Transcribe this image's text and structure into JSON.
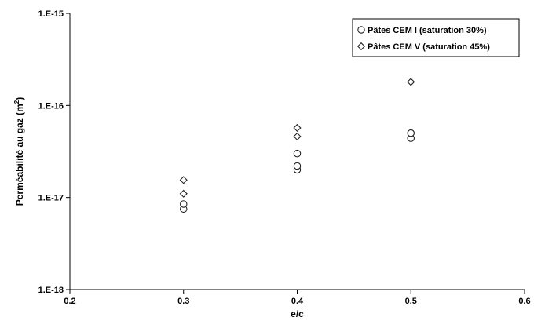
{
  "chart_data": {
    "type": "scatter",
    "xlabel": "e/c",
    "ylabel": "Perméabilité au gaz (m",
    "ylabel_sup": "2",
    "ylabel_end": ")",
    "xlim": [
      0.2,
      0.6
    ],
    "ylim": [
      1e-18,
      1e-15
    ],
    "yscale": "log",
    "x_ticks": [
      0.2,
      0.3,
      0.4,
      0.5,
      0.6
    ],
    "x_tick_labels": [
      "0.2",
      "0.3",
      "0.4",
      "0.5",
      "0.6"
    ],
    "y_ticks": [
      1e-18,
      1e-17,
      1e-16,
      1e-15
    ],
    "y_tick_labels": [
      "1.E-18",
      "1.E-17",
      "1.E-16",
      "1.E-15"
    ],
    "grid": false,
    "legend_position": "top-right",
    "series": [
      {
        "name": "Pâtes CEM I (saturation 30%)",
        "marker": "circle",
        "points": [
          {
            "x": 0.3,
            "y": 7.5e-18
          },
          {
            "x": 0.3,
            "y": 8.5e-18
          },
          {
            "x": 0.4,
            "y": 2e-17
          },
          {
            "x": 0.4,
            "y": 2.2e-17
          },
          {
            "x": 0.4,
            "y": 3e-17
          },
          {
            "x": 0.5,
            "y": 4.4e-17
          },
          {
            "x": 0.5,
            "y": 5e-17
          }
        ]
      },
      {
        "name": "Pâtes CEM V (saturation 45%)",
        "marker": "diamond",
        "points": [
          {
            "x": 0.3,
            "y": 1.1e-17
          },
          {
            "x": 0.3,
            "y": 1.55e-17
          },
          {
            "x": 0.4,
            "y": 4.6e-17
          },
          {
            "x": 0.4,
            "y": 5.7e-17
          },
          {
            "x": 0.5,
            "y": 1.8e-16
          }
        ]
      }
    ]
  }
}
